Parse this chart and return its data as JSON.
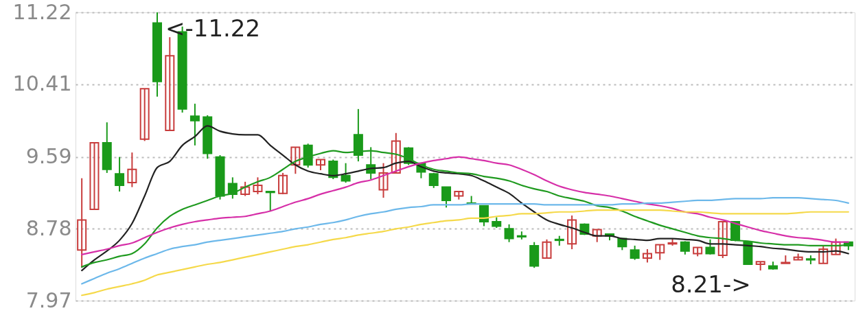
{
  "chart_data": {
    "type": "candlestick",
    "categories": [
      null,
      null,
      null,
      null,
      null,
      null,
      null,
      null,
      null,
      null,
      null,
      null,
      null,
      null,
      null,
      null,
      null,
      null,
      null,
      null,
      null,
      null,
      null,
      null,
      null,
      null,
      null,
      null,
      null,
      null,
      null,
      null,
      null,
      null,
      null,
      null,
      null,
      null,
      null,
      null,
      null,
      null,
      null,
      null,
      null,
      null,
      null,
      null,
      null,
      null,
      null,
      null,
      null,
      null,
      null,
      null,
      null,
      null,
      null,
      null,
      null,
      null
    ],
    "ohlc": [
      [
        8.54,
        9.35,
        8.34,
        8.88
      ],
      [
        9.0,
        9.75,
        9.0,
        9.75
      ],
      [
        9.75,
        9.98,
        9.41,
        9.45
      ],
      [
        9.4,
        9.59,
        9.2,
        9.27
      ],
      [
        9.3,
        9.64,
        9.25,
        9.45
      ],
      [
        9.79,
        10.36,
        9.77,
        10.36
      ],
      [
        11.1,
        11.22,
        10.27,
        10.44
      ],
      [
        9.89,
        10.94,
        9.89,
        10.73
      ],
      [
        11.0,
        11.06,
        10.09,
        10.13
      ],
      [
        10.05,
        10.19,
        9.72,
        10.0
      ],
      [
        10.04,
        10.06,
        9.57,
        9.63
      ],
      [
        9.59,
        9.61,
        9.11,
        9.15
      ],
      [
        9.29,
        9.36,
        9.12,
        9.17
      ],
      [
        9.17,
        9.31,
        9.15,
        9.25
      ],
      [
        9.2,
        9.36,
        9.17,
        9.27
      ],
      [
        9.2,
        9.2,
        8.98,
        9.19
      ],
      [
        9.18,
        9.41,
        9.17,
        9.38
      ],
      [
        9.5,
        9.7,
        9.4,
        9.7
      ],
      [
        9.72,
        9.74,
        9.47,
        9.5
      ],
      [
        9.5,
        9.56,
        9.44,
        9.56
      ],
      [
        9.54,
        9.56,
        9.34,
        9.36
      ],
      [
        9.38,
        9.52,
        9.3,
        9.32
      ],
      [
        9.84,
        10.13,
        9.54,
        9.61
      ],
      [
        9.5,
        9.7,
        9.34,
        9.41
      ],
      [
        9.22,
        9.52,
        9.13,
        9.41
      ],
      [
        9.41,
        9.86,
        9.41,
        9.77
      ],
      [
        9.69,
        9.7,
        9.5,
        9.52
      ],
      [
        9.52,
        9.52,
        9.35,
        9.42
      ],
      [
        9.4,
        9.41,
        9.24,
        9.27
      ],
      [
        9.25,
        9.25,
        9.02,
        9.1
      ],
      [
        9.15,
        9.2,
        9.11,
        9.2
      ],
      [
        9.07,
        9.15,
        9.06,
        9.06
      ],
      [
        9.04,
        9.04,
        8.81,
        8.86
      ],
      [
        8.86,
        8.91,
        8.79,
        8.81
      ],
      [
        8.78,
        8.83,
        8.63,
        8.67
      ],
      [
        8.7,
        8.75,
        8.66,
        8.69
      ],
      [
        8.59,
        8.63,
        8.34,
        8.36
      ],
      [
        8.45,
        8.66,
        8.45,
        8.63
      ],
      [
        8.66,
        8.7,
        8.59,
        8.65
      ],
      [
        8.61,
        8.93,
        8.55,
        8.88
      ],
      [
        8.83,
        8.84,
        8.71,
        8.72
      ],
      [
        8.7,
        8.77,
        8.63,
        8.77
      ],
      [
        8.72,
        8.72,
        8.65,
        8.7
      ],
      [
        8.67,
        8.67,
        8.54,
        8.58
      ],
      [
        8.54,
        8.59,
        8.43,
        8.45
      ],
      [
        8.45,
        8.55,
        8.4,
        8.5
      ],
      [
        8.51,
        8.6,
        8.43,
        8.6
      ],
      [
        8.61,
        8.67,
        8.59,
        8.62
      ],
      [
        8.63,
        8.64,
        8.49,
        8.53
      ],
      [
        8.5,
        8.57,
        8.47,
        8.57
      ],
      [
        8.57,
        8.66,
        8.49,
        8.5
      ],
      [
        8.48,
        8.86,
        8.45,
        8.86
      ],
      [
        8.86,
        8.86,
        8.64,
        8.65
      ],
      [
        8.63,
        8.63,
        8.38,
        8.38
      ],
      [
        8.38,
        8.41,
        8.31,
        8.41
      ],
      [
        8.36,
        8.41,
        8.32,
        8.33
      ],
      [
        8.39,
        8.48,
        8.39,
        8.4
      ],
      [
        8.43,
        8.5,
        8.43,
        8.46
      ],
      [
        8.44,
        8.48,
        8.38,
        8.43
      ],
      [
        8.39,
        8.59,
        8.39,
        8.55
      ],
      [
        8.49,
        8.67,
        8.49,
        8.63
      ],
      [
        8.63,
        8.63,
        8.54,
        8.59
      ]
    ],
    "colors": [
      "#c83c3c",
      "#c83c3c",
      "#1a9a1a",
      "#1a9a1a",
      "#c83c3c",
      "#c83c3c",
      "#1a9a1a",
      "#c83c3c",
      "#1a9a1a",
      "#1a9a1a",
      "#1a9a1a",
      "#1a9a1a",
      "#1a9a1a",
      "#c83c3c",
      "#c83c3c",
      "#1a9a1a",
      "#c83c3c",
      "#c83c3c",
      "#1a9a1a",
      "#c83c3c",
      "#1a9a1a",
      "#1a9a1a",
      "#1a9a1a",
      "#1a9a1a",
      "#c83c3c",
      "#c83c3c",
      "#1a9a1a",
      "#1a9a1a",
      "#1a9a1a",
      "#1a9a1a",
      "#c83c3c",
      "#1a9a1a",
      "#1a9a1a",
      "#1a9a1a",
      "#1a9a1a",
      "#1a9a1a",
      "#1a9a1a",
      "#c83c3c",
      "#1a9a1a",
      "#c83c3c",
      "#1a9a1a",
      "#c83c3c",
      "#1a9a1a",
      "#1a9a1a",
      "#1a9a1a",
      "#c83c3c",
      "#c83c3c",
      "#c83c3c",
      "#1a9a1a",
      "#c83c3c",
      "#1a9a1a",
      "#c83c3c",
      "#1a9a1a",
      "#1a9a1a",
      "#c83c3c",
      "#1a9a1a",
      "#c83c3c",
      "#c83c3c",
      "#1a9a1a",
      "#c83c3c",
      "#c83c3c",
      "#1a9a1a"
    ],
    "series": [
      {
        "type": "line",
        "color": "#222222",
        "values": [
          8.31,
          8.43,
          8.53,
          8.65,
          8.84,
          9.15,
          9.47,
          9.54,
          9.72,
          9.82,
          9.94,
          9.88,
          9.85,
          9.84,
          9.84,
          9.72,
          9.61,
          9.5,
          9.43,
          9.4,
          9.38,
          9.4,
          9.43,
          9.46,
          9.47,
          9.52,
          9.54,
          9.48,
          9.43,
          9.41,
          9.4,
          9.38,
          9.32,
          9.25,
          9.18,
          9.07,
          8.97,
          8.88,
          8.83,
          8.79,
          8.74,
          8.7,
          8.7,
          8.67,
          8.66,
          8.65,
          8.67,
          8.67,
          8.66,
          8.65,
          8.61,
          8.61,
          8.6,
          8.59,
          8.58,
          8.56,
          8.55,
          8.53,
          8.52,
          8.52,
          8.53,
          8.5
        ]
      },
      {
        "type": "line",
        "color": "#1f9a1f",
        "values": [
          8.35,
          8.4,
          8.43,
          8.47,
          8.5,
          8.61,
          8.79,
          8.92,
          9.0,
          9.05,
          9.1,
          9.15,
          9.18,
          9.25,
          9.31,
          9.36,
          9.45,
          9.54,
          9.59,
          9.63,
          9.66,
          9.64,
          9.65,
          9.66,
          9.64,
          9.62,
          9.57,
          9.5,
          9.45,
          9.43,
          9.41,
          9.4,
          9.37,
          9.35,
          9.32,
          9.27,
          9.23,
          9.2,
          9.15,
          9.12,
          9.09,
          9.04,
          9.02,
          8.98,
          8.92,
          8.87,
          8.82,
          8.78,
          8.74,
          8.7,
          8.68,
          8.67,
          8.65,
          8.64,
          8.62,
          8.61,
          8.6,
          8.6,
          8.59,
          8.59,
          8.59,
          8.6
        ]
      },
      {
        "type": "line",
        "color": "#d62fa8",
        "values": [
          8.49,
          8.52,
          8.55,
          8.59,
          8.62,
          8.68,
          8.74,
          8.79,
          8.83,
          8.86,
          8.88,
          8.9,
          8.91,
          8.92,
          8.95,
          8.98,
          9.03,
          9.08,
          9.12,
          9.17,
          9.21,
          9.25,
          9.3,
          9.33,
          9.38,
          9.43,
          9.48,
          9.52,
          9.55,
          9.57,
          9.59,
          9.57,
          9.55,
          9.52,
          9.5,
          9.45,
          9.39,
          9.32,
          9.26,
          9.22,
          9.19,
          9.17,
          9.15,
          9.12,
          9.09,
          9.06,
          9.04,
          9.01,
          8.97,
          8.95,
          8.91,
          8.88,
          8.84,
          8.8,
          8.76,
          8.73,
          8.7,
          8.68,
          8.67,
          8.65,
          8.63,
          8.63
        ]
      },
      {
        "type": "line",
        "color": "#6cb8ea",
        "values": [
          8.16,
          8.22,
          8.28,
          8.33,
          8.39,
          8.45,
          8.5,
          8.55,
          8.58,
          8.6,
          8.63,
          8.65,
          8.67,
          8.69,
          8.71,
          8.73,
          8.75,
          8.78,
          8.8,
          8.83,
          8.85,
          8.88,
          8.92,
          8.95,
          8.97,
          9.0,
          9.02,
          9.03,
          9.05,
          9.05,
          9.05,
          9.06,
          9.06,
          9.06,
          9.06,
          9.06,
          9.06,
          9.05,
          9.05,
          9.05,
          9.05,
          9.05,
          9.05,
          9.06,
          9.06,
          9.07,
          9.07,
          9.08,
          9.09,
          9.1,
          9.1,
          9.11,
          9.12,
          9.12,
          9.12,
          9.13,
          9.13,
          9.13,
          9.12,
          9.11,
          9.1,
          9.07
        ]
      },
      {
        "type": "line",
        "color": "#f5d94a",
        "values": [
          8.03,
          8.06,
          8.1,
          8.13,
          8.16,
          8.2,
          8.26,
          8.29,
          8.32,
          8.35,
          8.38,
          8.4,
          8.43,
          8.46,
          8.49,
          8.52,
          8.55,
          8.58,
          8.6,
          8.63,
          8.66,
          8.68,
          8.71,
          8.73,
          8.75,
          8.78,
          8.8,
          8.83,
          8.85,
          8.87,
          8.88,
          8.9,
          8.9,
          8.92,
          8.93,
          8.95,
          8.95,
          8.96,
          8.97,
          8.97,
          8.98,
          8.99,
          8.99,
          8.99,
          8.99,
          8.99,
          8.99,
          8.98,
          8.97,
          8.97,
          8.96,
          8.95,
          8.95,
          8.95,
          8.95,
          8.95,
          8.95,
          8.96,
          8.97,
          8.97,
          8.97,
          8.97
        ]
      }
    ],
    "ylim": [
      7.97,
      11.22
    ],
    "yticks": [
      7.97,
      8.78,
      9.59,
      10.41,
      11.22
    ],
    "grid": "y",
    "annotations": [
      "<-11.22",
      "8.21->"
    ]
  }
}
